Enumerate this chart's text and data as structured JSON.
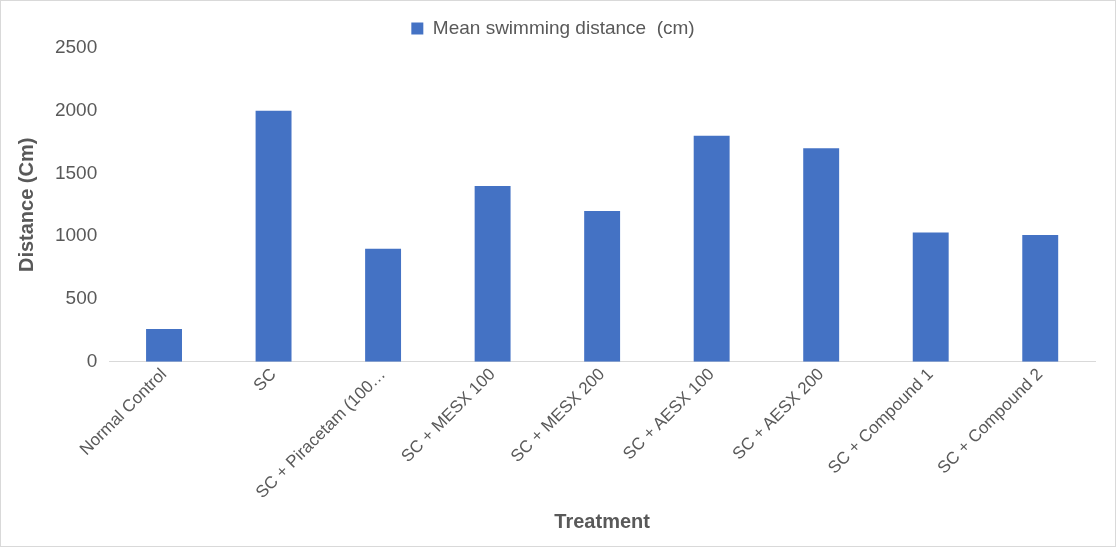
{
  "chart_data": {
    "type": "bar",
    "xlabel": "Treatment",
    "ylabel": "Distance (Cm)",
    "categories": [
      "Normal Control",
      "SC",
      "SC + Piracetam (100…",
      "SC + MESX 100",
      "SC + MESX 200",
      "SC + AESX 100",
      "SC + AESX 200",
      "SC + Compound 1",
      "SC + Compound 2"
    ],
    "series": [
      {
        "name": "Mean swimming distance  (cm)",
        "color": "#4472c4",
        "values": [
          260,
          2000,
          900,
          1400,
          1200,
          1800,
          1700,
          1030,
          1010
        ]
      }
    ],
    "ylim": [
      0,
      2500
    ],
    "yticks": [
      0,
      500,
      1000,
      1500,
      2000,
      2500
    ],
    "grid": false,
    "legend": "top"
  }
}
